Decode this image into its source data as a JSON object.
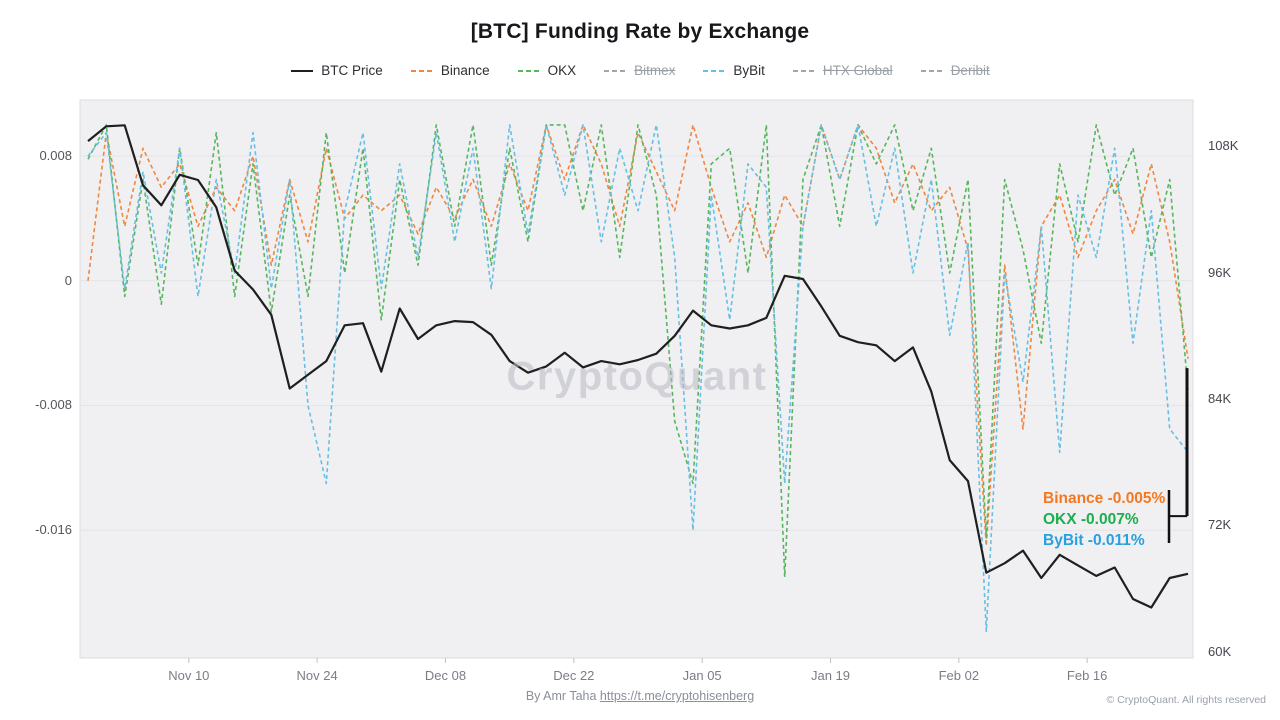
{
  "title": "[BTC] Funding Rate by Exchange",
  "watermark": "CryptoQuant",
  "legend": {
    "items": [
      {
        "label": "BTC Price",
        "color": "#1f1f1f",
        "style": "solid",
        "enabled": true
      },
      {
        "label": "Binance",
        "color": "#f0863f",
        "style": "dashed",
        "enabled": true
      },
      {
        "label": "OKX",
        "color": "#57b55e",
        "style": "dashed",
        "enabled": true
      },
      {
        "label": "Bitmex",
        "color": "#a2a7ae",
        "style": "dashed",
        "enabled": false
      },
      {
        "label": "ByBit",
        "color": "#67bfe4",
        "style": "dashed",
        "enabled": true
      },
      {
        "label": "HTX Global",
        "color": "#a2a7ae",
        "style": "dashed",
        "enabled": false
      },
      {
        "label": "Deribit",
        "color": "#a2a7ae",
        "style": "dashed",
        "enabled": false
      }
    ]
  },
  "annotation": {
    "lines": [
      {
        "label": "Binance -0.005%",
        "color": "#f5781f"
      },
      {
        "label": "OKX -0.007%",
        "color": "#1caf4e"
      },
      {
        "label": "ByBit -0.011%",
        "color": "#28a0e0"
      }
    ],
    "marker_from": -0.0056,
    "marker_to": -0.0151
  },
  "footer": {
    "by": "By Amr Taha ",
    "link": "https://t.me/cryptohisenberg",
    "copyright": "© CryptoQuant. All rights reserved"
  },
  "chart_data": {
    "type": "line",
    "title": "[BTC] Funding Rate by Exchange",
    "grid": true,
    "legend_position": "top",
    "funding_cap": 0.01,
    "left_axis": {
      "range": [
        -0.0242,
        0.0116
      ],
      "ticks": [
        {
          "label": "0.008",
          "value": 0.008
        },
        {
          "label": "0",
          "value": 0
        },
        {
          "label": "-0.008",
          "value": -0.008
        },
        {
          "label": "-0.016",
          "value": -0.016
        }
      ]
    },
    "right_axis": {
      "range": [
        59.4,
        112.4
      ],
      "ticks": [
        {
          "label": "108K",
          "value": 108
        },
        {
          "label": "96K",
          "value": 96
        },
        {
          "label": "84K",
          "value": 84
        },
        {
          "label": "72K",
          "value": 72
        },
        {
          "label": "60K",
          "value": 60
        }
      ]
    },
    "x_axis": {
      "range_days": [
        0,
        120
      ],
      "ticks": [
        {
          "label": "Nov 10",
          "day": 11
        },
        {
          "label": "Nov 24",
          "day": 25
        },
        {
          "label": "Dec 08",
          "day": 39
        },
        {
          "label": "Dec 22",
          "day": 53
        },
        {
          "label": "Jan 05",
          "day": 67
        },
        {
          "label": "Jan 19",
          "day": 81
        },
        {
          "label": "Feb 02",
          "day": 95
        },
        {
          "label": "Feb 16",
          "day": 109
        }
      ]
    },
    "days": [
      0,
      2,
      4,
      6,
      8,
      10,
      12,
      14,
      16,
      18,
      20,
      22,
      24,
      26,
      28,
      30,
      32,
      34,
      36,
      38,
      40,
      42,
      44,
      46,
      48,
      50,
      52,
      54,
      56,
      58,
      60,
      62,
      64,
      66,
      68,
      70,
      72,
      74,
      76,
      78,
      80,
      82,
      84,
      86,
      88,
      90,
      92,
      94,
      96,
      98,
      100,
      102,
      104,
      106,
      108,
      110,
      112,
      114,
      116,
      118,
      120
    ],
    "series": [
      {
        "name": "BTC Price",
        "axis": "right",
        "color": "#1f1f1f",
        "dash": null,
        "width": 2.2,
        "values": [
          108.5,
          109.9,
          110.0,
          104.3,
          102.4,
          105.3,
          104.8,
          102.2,
          96.2,
          94.4,
          92.0,
          85.0,
          86.3,
          87.6,
          91.0,
          91.2,
          86.6,
          92.6,
          89.7,
          91.0,
          91.4,
          91.3,
          90.1,
          87.6,
          86.5,
          87.1,
          88.4,
          87.0,
          87.6,
          87.3,
          87.7,
          88.3,
          90.0,
          92.4,
          91.0,
          90.7,
          91.0,
          91.7,
          95.7,
          95.4,
          92.8,
          90.0,
          89.4,
          89.1,
          87.6,
          88.9,
          84.7,
          78.2,
          76.2,
          67.5,
          68.4,
          69.6,
          67.0,
          69.2,
          68.2,
          67.2,
          68.0,
          65.0,
          64.2,
          67.0,
          67.4
        ]
      },
      {
        "name": "Binance",
        "axis": "left",
        "color": "#f0863f",
        "dash": "4 3",
        "width": 1.6,
        "values": [
          0.0,
          0.0095,
          0.0035,
          0.0085,
          0.006,
          0.0075,
          0.0035,
          0.006,
          0.0045,
          0.008,
          0.001,
          0.0065,
          0.0025,
          0.0085,
          0.004,
          0.0055,
          0.0045,
          0.0055,
          0.003,
          0.006,
          0.004,
          0.0065,
          0.0035,
          0.0075,
          0.0045,
          0.01,
          0.0065,
          0.01,
          0.0075,
          0.0035,
          0.0095,
          0.007,
          0.0045,
          0.01,
          0.006,
          0.0025,
          0.005,
          0.0015,
          0.0055,
          0.0035,
          0.01,
          0.0065,
          0.01,
          0.0085,
          0.005,
          0.0075,
          0.0045,
          0.006,
          0.002,
          -0.017,
          0.001,
          -0.0095,
          0.0035,
          0.0055,
          0.0015,
          0.0045,
          0.0065,
          0.003,
          0.0075,
          0.0025,
          -0.005
        ]
      },
      {
        "name": "OKX",
        "axis": "left",
        "color": "#57b55e",
        "dash": "4 3",
        "width": 1.6,
        "values": [
          0.0078,
          0.01,
          -0.001,
          0.0065,
          -0.0015,
          0.0085,
          0.001,
          0.0095,
          -0.001,
          0.0075,
          -0.002,
          0.0055,
          -0.001,
          0.0095,
          0.0005,
          0.0085,
          -0.0025,
          0.0065,
          0.001,
          0.01,
          0.0035,
          0.01,
          0.001,
          0.0085,
          0.0025,
          0.01,
          0.01,
          0.0045,
          0.01,
          0.0015,
          0.01,
          0.0055,
          -0.009,
          -0.013,
          0.0075,
          0.0085,
          0.0005,
          0.01,
          -0.019,
          0.0065,
          0.01,
          0.0035,
          0.01,
          0.0075,
          0.01,
          0.0045,
          0.0085,
          0.0005,
          0.0065,
          -0.0165,
          0.0065,
          0.002,
          -0.004,
          0.0075,
          0.0025,
          0.01,
          0.0055,
          0.0085,
          0.0015,
          0.0065,
          -0.007
        ]
      },
      {
        "name": "ByBit",
        "axis": "left",
        "color": "#67bfe4",
        "dash": "4 3",
        "width": 1.6,
        "values": [
          0.008,
          0.0095,
          -0.0005,
          0.007,
          0.0005,
          0.0085,
          -0.001,
          0.0065,
          0.0005,
          0.0095,
          -0.0005,
          0.0065,
          -0.008,
          -0.013,
          0.0045,
          0.0095,
          -0.0005,
          0.0075,
          0.0015,
          0.0095,
          0.0025,
          0.0085,
          -0.0005,
          0.01,
          0.003,
          0.01,
          0.0055,
          0.01,
          0.0025,
          0.0085,
          0.0045,
          0.01,
          0.0015,
          -0.016,
          0.0055,
          -0.0025,
          0.0075,
          0.006,
          -0.013,
          0.0035,
          0.01,
          0.0065,
          0.01,
          0.0035,
          0.0085,
          0.0005,
          0.0065,
          -0.0035,
          0.0025,
          -0.0225,
          0.0005,
          -0.0065,
          0.0035,
          -0.011,
          0.0055,
          0.0015,
          0.0085,
          -0.004,
          0.0045,
          -0.0095,
          -0.011
        ]
      }
    ]
  }
}
